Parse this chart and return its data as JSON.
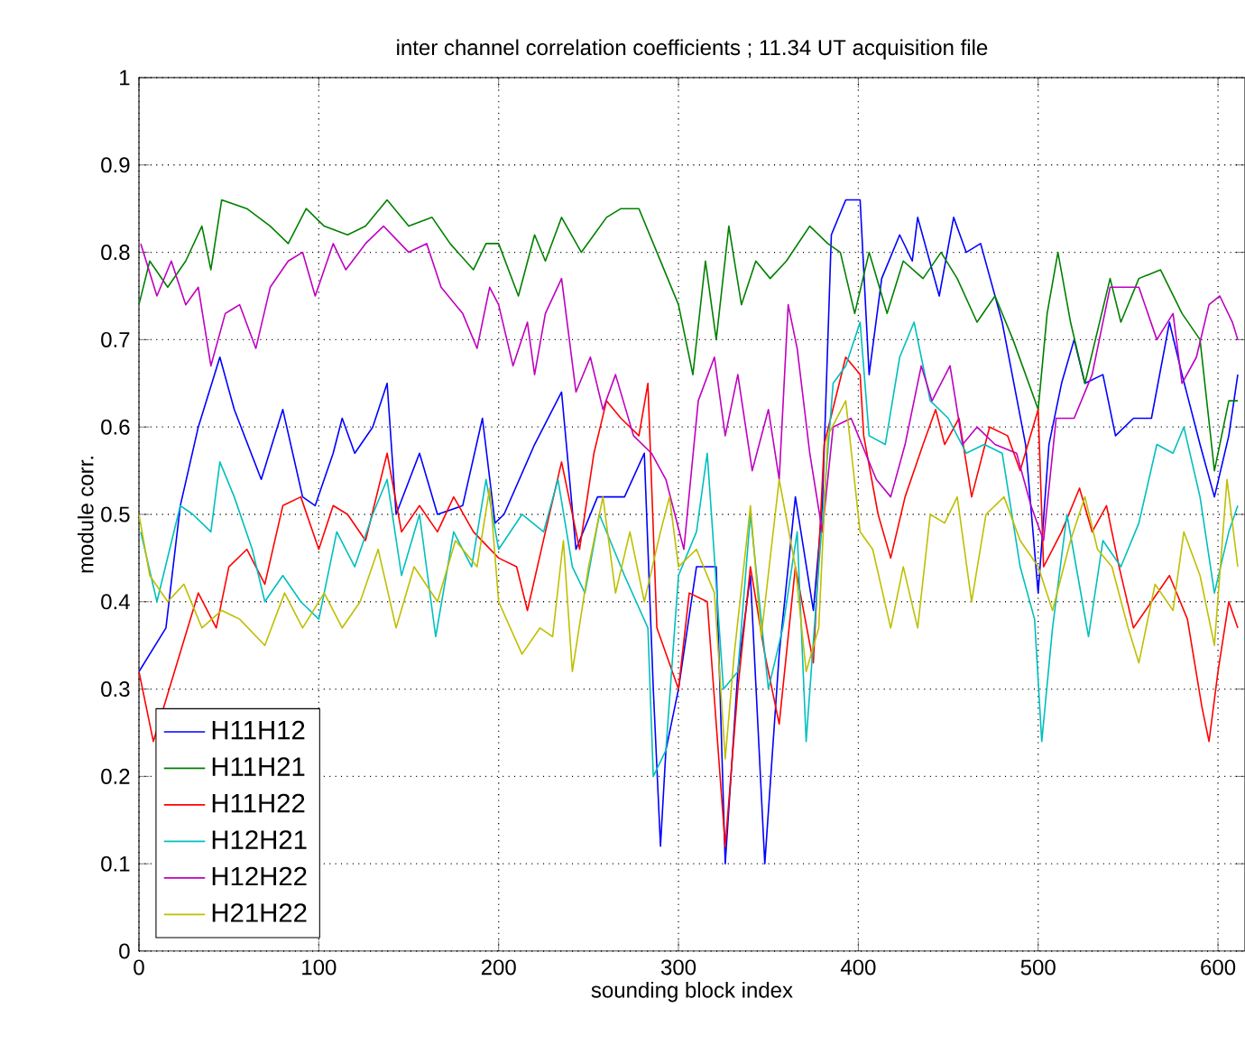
{
  "chart_data": {
    "type": "line",
    "title": "inter channel correlation coefficients ; 11.34 UT acquisition file",
    "xlabel": "sounding block index",
    "ylabel": "module corr.",
    "xlim": [
      0,
      615
    ],
    "xticks": [
      0,
      100,
      200,
      300,
      400,
      500,
      600
    ],
    "ylim": [
      0,
      1
    ],
    "yticks": [
      0,
      0.1,
      0.2,
      0.3,
      0.4,
      0.5,
      0.6,
      0.7,
      0.8,
      0.9,
      1
    ],
    "grid": true,
    "legend": "bottom left",
    "marker": "none",
    "line_style": "solid",
    "series": [
      {
        "name": "H11H12",
        "color": "#0000ff",
        "x": [
          0,
          15,
          23,
          33,
          45,
          53,
          68,
          80,
          91,
          98,
          108,
          113,
          120,
          130,
          138,
          143,
          156,
          166,
          180,
          191,
          198,
          203,
          220,
          235,
          243,
          255,
          270,
          281,
          286,
          290,
          293,
          300,
          310,
          321,
          326,
          333,
          340,
          348,
          356,
          365,
          375,
          380,
          385,
          393,
          401,
          406,
          413,
          423,
          430,
          433,
          445,
          453,
          460,
          468,
          480,
          493,
          500,
          506,
          513,
          520,
          526,
          536,
          543,
          553,
          563,
          573,
          580,
          590,
          598,
          606,
          611
        ],
        "values": [
          0.32,
          0.37,
          0.51,
          0.6,
          0.68,
          0.62,
          0.54,
          0.62,
          0.52,
          0.51,
          0.57,
          0.61,
          0.57,
          0.6,
          0.65,
          0.5,
          0.57,
          0.5,
          0.51,
          0.61,
          0.49,
          0.5,
          0.58,
          0.64,
          0.46,
          0.52,
          0.52,
          0.57,
          0.3,
          0.12,
          0.23,
          0.3,
          0.44,
          0.44,
          0.1,
          0.32,
          0.43,
          0.1,
          0.34,
          0.52,
          0.39,
          0.51,
          0.82,
          0.86,
          0.86,
          0.66,
          0.77,
          0.82,
          0.79,
          0.84,
          0.75,
          0.84,
          0.8,
          0.81,
          0.72,
          0.58,
          0.41,
          0.58,
          0.65,
          0.7,
          0.65,
          0.66,
          0.59,
          0.61,
          0.61,
          0.72,
          0.66,
          0.58,
          0.52,
          0.59,
          0.66
        ]
      },
      {
        "name": "H11H21",
        "color": "#008000",
        "x": [
          0,
          6,
          16,
          26,
          35,
          40,
          46,
          60,
          73,
          83,
          93,
          103,
          116,
          126,
          138,
          150,
          163,
          173,
          186,
          193,
          200,
          211,
          220,
          226,
          235,
          246,
          260,
          268,
          278,
          286,
          300,
          308,
          315,
          321,
          328,
          335,
          343,
          351,
          360,
          373,
          383,
          390,
          398,
          406,
          416,
          425,
          436,
          446,
          455,
          466,
          476,
          486,
          500,
          505,
          511,
          518,
          526,
          540,
          546,
          556,
          568,
          580,
          590,
          598,
          606,
          611
        ],
        "values": [
          0.74,
          0.79,
          0.76,
          0.79,
          0.83,
          0.78,
          0.86,
          0.85,
          0.83,
          0.81,
          0.85,
          0.83,
          0.82,
          0.83,
          0.86,
          0.83,
          0.84,
          0.81,
          0.78,
          0.81,
          0.81,
          0.75,
          0.82,
          0.79,
          0.84,
          0.8,
          0.84,
          0.85,
          0.85,
          0.81,
          0.74,
          0.66,
          0.79,
          0.7,
          0.83,
          0.74,
          0.79,
          0.77,
          0.79,
          0.83,
          0.81,
          0.8,
          0.73,
          0.8,
          0.73,
          0.79,
          0.77,
          0.8,
          0.77,
          0.72,
          0.75,
          0.7,
          0.62,
          0.73,
          0.8,
          0.72,
          0.65,
          0.77,
          0.72,
          0.77,
          0.78,
          0.73,
          0.7,
          0.55,
          0.63,
          0.63
        ]
      },
      {
        "name": "H11H22",
        "color": "#ff0000",
        "x": [
          0,
          8,
          33,
          43,
          50,
          60,
          70,
          80,
          90,
          100,
          108,
          116,
          126,
          138,
          146,
          156,
          166,
          175,
          186,
          200,
          210,
          216,
          226,
          235,
          245,
          253,
          260,
          268,
          278,
          283,
          288,
          300,
          306,
          316,
          326,
          333,
          340,
          348,
          356,
          365,
          375,
          381,
          393,
          401,
          403,
          411,
          418,
          426,
          436,
          443,
          448,
          456,
          463,
          473,
          483,
          490,
          500,
          503,
          513,
          523,
          530,
          538,
          545,
          553,
          563,
          573,
          583,
          591,
          595,
          600,
          606,
          611
        ],
        "values": [
          0.32,
          0.24,
          0.41,
          0.37,
          0.44,
          0.46,
          0.42,
          0.51,
          0.52,
          0.46,
          0.51,
          0.5,
          0.47,
          0.57,
          0.48,
          0.51,
          0.48,
          0.52,
          0.48,
          0.45,
          0.44,
          0.39,
          0.48,
          0.56,
          0.46,
          0.57,
          0.63,
          0.61,
          0.59,
          0.65,
          0.37,
          0.3,
          0.41,
          0.4,
          0.12,
          0.3,
          0.44,
          0.34,
          0.26,
          0.44,
          0.33,
          0.58,
          0.68,
          0.66,
          0.59,
          0.5,
          0.45,
          0.52,
          0.58,
          0.62,
          0.58,
          0.61,
          0.52,
          0.6,
          0.59,
          0.55,
          0.62,
          0.44,
          0.48,
          0.53,
          0.48,
          0.51,
          0.44,
          0.37,
          0.4,
          0.43,
          0.38,
          0.28,
          0.24,
          0.32,
          0.4,
          0.37
        ]
      },
      {
        "name": "H12H21",
        "color": "#00bfbf",
        "x": [
          1,
          10,
          23,
          30,
          40,
          45,
          53,
          63,
          70,
          80,
          90,
          100,
          110,
          120,
          130,
          138,
          146,
          156,
          165,
          175,
          185,
          193,
          200,
          213,
          225,
          233,
          241,
          248,
          256,
          270,
          283,
          286,
          293,
          300,
          310,
          316,
          325,
          333,
          340,
          350,
          358,
          366,
          371,
          378,
          386,
          393,
          401,
          406,
          415,
          423,
          431,
          440,
          450,
          460,
          470,
          480,
          490,
          498,
          502,
          508,
          516,
          528,
          536,
          546,
          556,
          566,
          575,
          581,
          590,
          598,
          606,
          611
        ],
        "values": [
          0.48,
          0.4,
          0.51,
          0.5,
          0.48,
          0.56,
          0.52,
          0.46,
          0.4,
          0.43,
          0.4,
          0.38,
          0.48,
          0.44,
          0.5,
          0.54,
          0.43,
          0.5,
          0.36,
          0.48,
          0.44,
          0.54,
          0.46,
          0.5,
          0.48,
          0.54,
          0.44,
          0.41,
          0.5,
          0.43,
          0.37,
          0.2,
          0.23,
          0.43,
          0.48,
          0.57,
          0.3,
          0.32,
          0.5,
          0.3,
          0.37,
          0.48,
          0.24,
          0.44,
          0.65,
          0.67,
          0.72,
          0.59,
          0.58,
          0.68,
          0.72,
          0.63,
          0.61,
          0.57,
          0.58,
          0.57,
          0.44,
          0.38,
          0.24,
          0.37,
          0.5,
          0.36,
          0.47,
          0.44,
          0.49,
          0.58,
          0.57,
          0.6,
          0.52,
          0.41,
          0.48,
          0.51
        ]
      },
      {
        "name": "H12H22",
        "color": "#bf00bf",
        "x": [
          1,
          10,
          18,
          26,
          33,
          40,
          48,
          56,
          65,
          73,
          83,
          91,
          98,
          108,
          115,
          126,
          136,
          150,
          160,
          168,
          180,
          188,
          195,
          200,
          208,
          216,
          220,
          226,
          235,
          243,
          251,
          258,
          265,
          275,
          285,
          293,
          303,
          311,
          320,
          326,
          333,
          341,
          350,
          356,
          361,
          366,
          373,
          380,
          386,
          396,
          410,
          418,
          426,
          435,
          441,
          451,
          458,
          466,
          476,
          488,
          496,
          503,
          510,
          520,
          530,
          540,
          548,
          556,
          566,
          575,
          580,
          588,
          595,
          601,
          608,
          611
        ],
        "values": [
          0.81,
          0.75,
          0.79,
          0.74,
          0.76,
          0.67,
          0.73,
          0.74,
          0.69,
          0.76,
          0.79,
          0.8,
          0.75,
          0.81,
          0.78,
          0.81,
          0.83,
          0.8,
          0.81,
          0.76,
          0.73,
          0.69,
          0.76,
          0.74,
          0.67,
          0.72,
          0.66,
          0.73,
          0.77,
          0.64,
          0.68,
          0.62,
          0.66,
          0.59,
          0.57,
          0.54,
          0.46,
          0.63,
          0.68,
          0.59,
          0.66,
          0.55,
          0.62,
          0.54,
          0.74,
          0.69,
          0.57,
          0.48,
          0.6,
          0.61,
          0.54,
          0.52,
          0.58,
          0.67,
          0.63,
          0.67,
          0.58,
          0.6,
          0.58,
          0.57,
          0.51,
          0.47,
          0.61,
          0.61,
          0.66,
          0.76,
          0.76,
          0.76,
          0.7,
          0.73,
          0.65,
          0.68,
          0.74,
          0.75,
          0.72,
          0.7
        ]
      },
      {
        "name": "H21H22",
        "color": "#bfbf00",
        "x": [
          0,
          6,
          16,
          25,
          35,
          46,
          56,
          70,
          81,
          91,
          103,
          113,
          123,
          133,
          143,
          153,
          166,
          176,
          188,
          195,
          200,
          213,
          223,
          230,
          236,
          241,
          250,
          258,
          265,
          273,
          281,
          290,
          295,
          300,
          310,
          320,
          326,
          331,
          340,
          346,
          356,
          365,
          371,
          378,
          383,
          393,
          401,
          408,
          418,
          425,
          433,
          440,
          448,
          455,
          463,
          471,
          481,
          490,
          500,
          508,
          518,
          526,
          533,
          541,
          550,
          556,
          565,
          575,
          581,
          590,
          598,
          605,
          611
        ],
        "values": [
          0.5,
          0.43,
          0.4,
          0.42,
          0.37,
          0.39,
          0.38,
          0.35,
          0.41,
          0.37,
          0.41,
          0.37,
          0.4,
          0.46,
          0.37,
          0.44,
          0.4,
          0.47,
          0.44,
          0.53,
          0.4,
          0.34,
          0.37,
          0.36,
          0.47,
          0.32,
          0.44,
          0.52,
          0.41,
          0.48,
          0.4,
          0.48,
          0.52,
          0.44,
          0.46,
          0.41,
          0.22,
          0.34,
          0.51,
          0.36,
          0.54,
          0.44,
          0.32,
          0.37,
          0.59,
          0.63,
          0.48,
          0.46,
          0.37,
          0.44,
          0.37,
          0.5,
          0.49,
          0.52,
          0.4,
          0.5,
          0.52,
          0.47,
          0.44,
          0.39,
          0.47,
          0.52,
          0.46,
          0.44,
          0.37,
          0.33,
          0.42,
          0.39,
          0.48,
          0.43,
          0.35,
          0.54,
          0.44
        ]
      }
    ]
  }
}
